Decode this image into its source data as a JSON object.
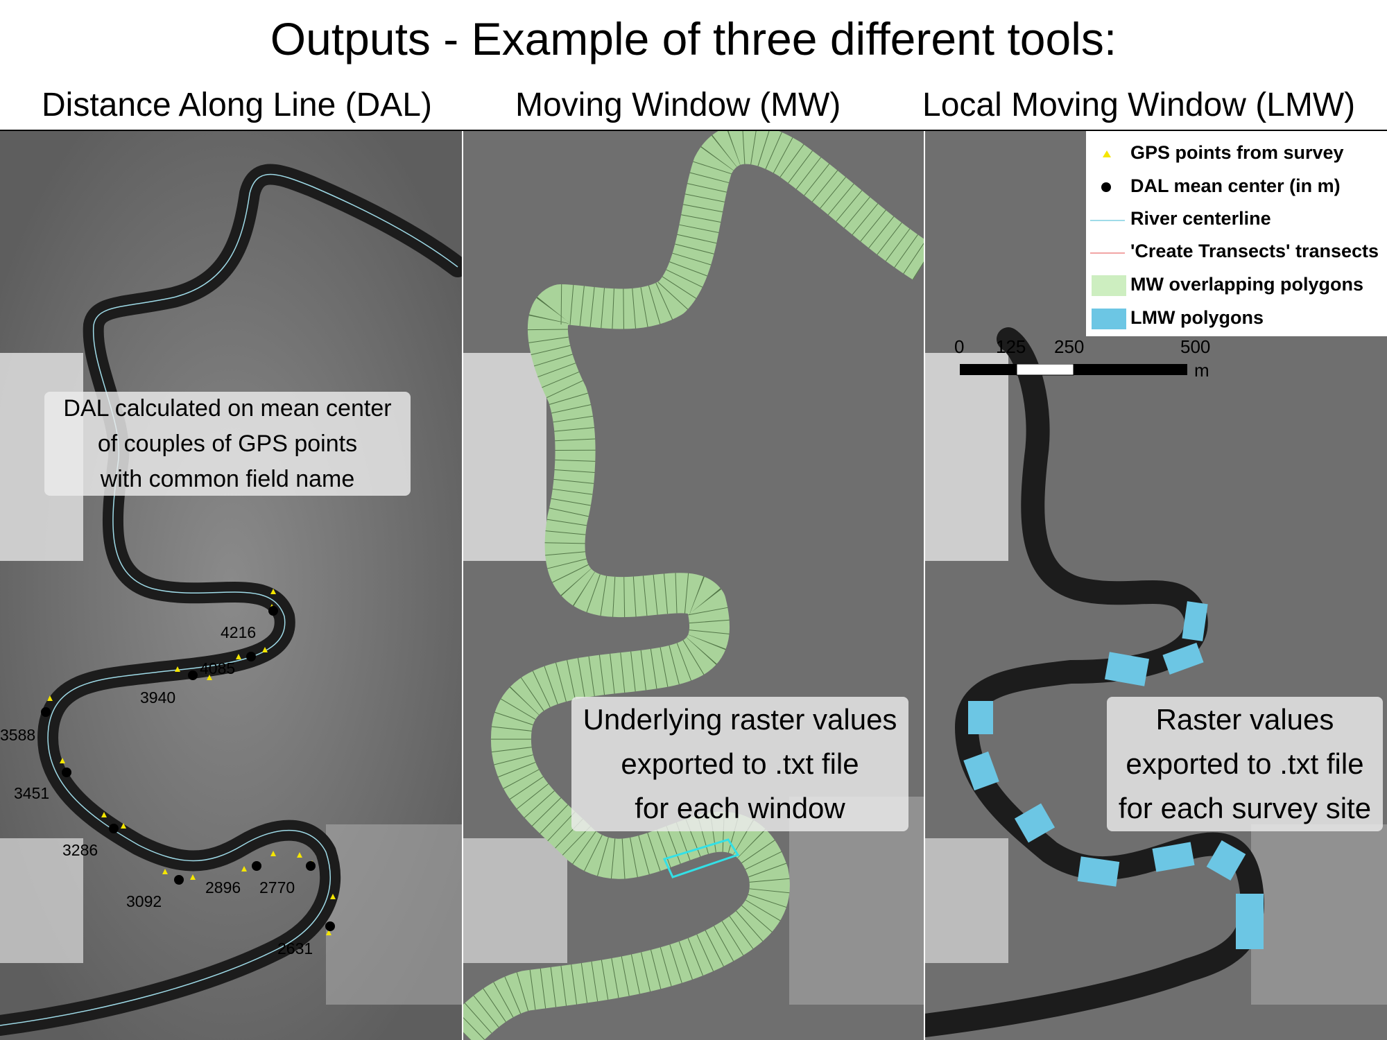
{
  "title": "Outputs -  Example of three different tools:",
  "panels": {
    "dal": {
      "title": "Distance Along Line (DAL)"
    },
    "mw": {
      "title": "Moving Window (MW)"
    },
    "lmw": {
      "title": "Local Moving Window (LMW)"
    }
  },
  "callouts": {
    "dal": "DAL calculated on mean center\nof couples of GPS points\nwith common field name",
    "mw": "Underlying raster values\nexported to .txt file\nfor each window",
    "lmw": "Raster values\nexported to .txt file\nfor each survey site"
  },
  "legend": {
    "items": [
      {
        "label": "GPS points from survey",
        "symbol": "yellow-triangle",
        "color": "#f5e600"
      },
      {
        "label": "DAL mean center (in m)",
        "symbol": "black-dot",
        "color": "#000000"
      },
      {
        "label": "River centerline",
        "symbol": "cyan-line",
        "color": "#9fdbe8"
      },
      {
        "label": "'Create Transects' transects",
        "symbol": "red-line",
        "color": "#f2a5a5"
      },
      {
        "label": "MW overlapping polygons",
        "symbol": "green-box",
        "color": "#cdeec0"
      },
      {
        "label": "LMW polygons",
        "symbol": "blue-box",
        "color": "#6cc6e4"
      }
    ],
    "scale": {
      "ticks": [
        "0",
        "125",
        "250",
        "500"
      ],
      "unit": "m"
    }
  },
  "dal_labels": [
    "4216",
    "4085",
    "3940",
    "3588",
    "3451",
    "3286",
    "3092",
    "2896",
    "2770",
    "2631"
  ],
  "colors": {
    "imagery": "#6f6f6f",
    "river": "#1c1c1c",
    "mw_polygon": "#a9d39a",
    "lmw_polygon": "#6cc6e4",
    "centerline": "#9fdbe8",
    "gps": "#f5e600"
  }
}
